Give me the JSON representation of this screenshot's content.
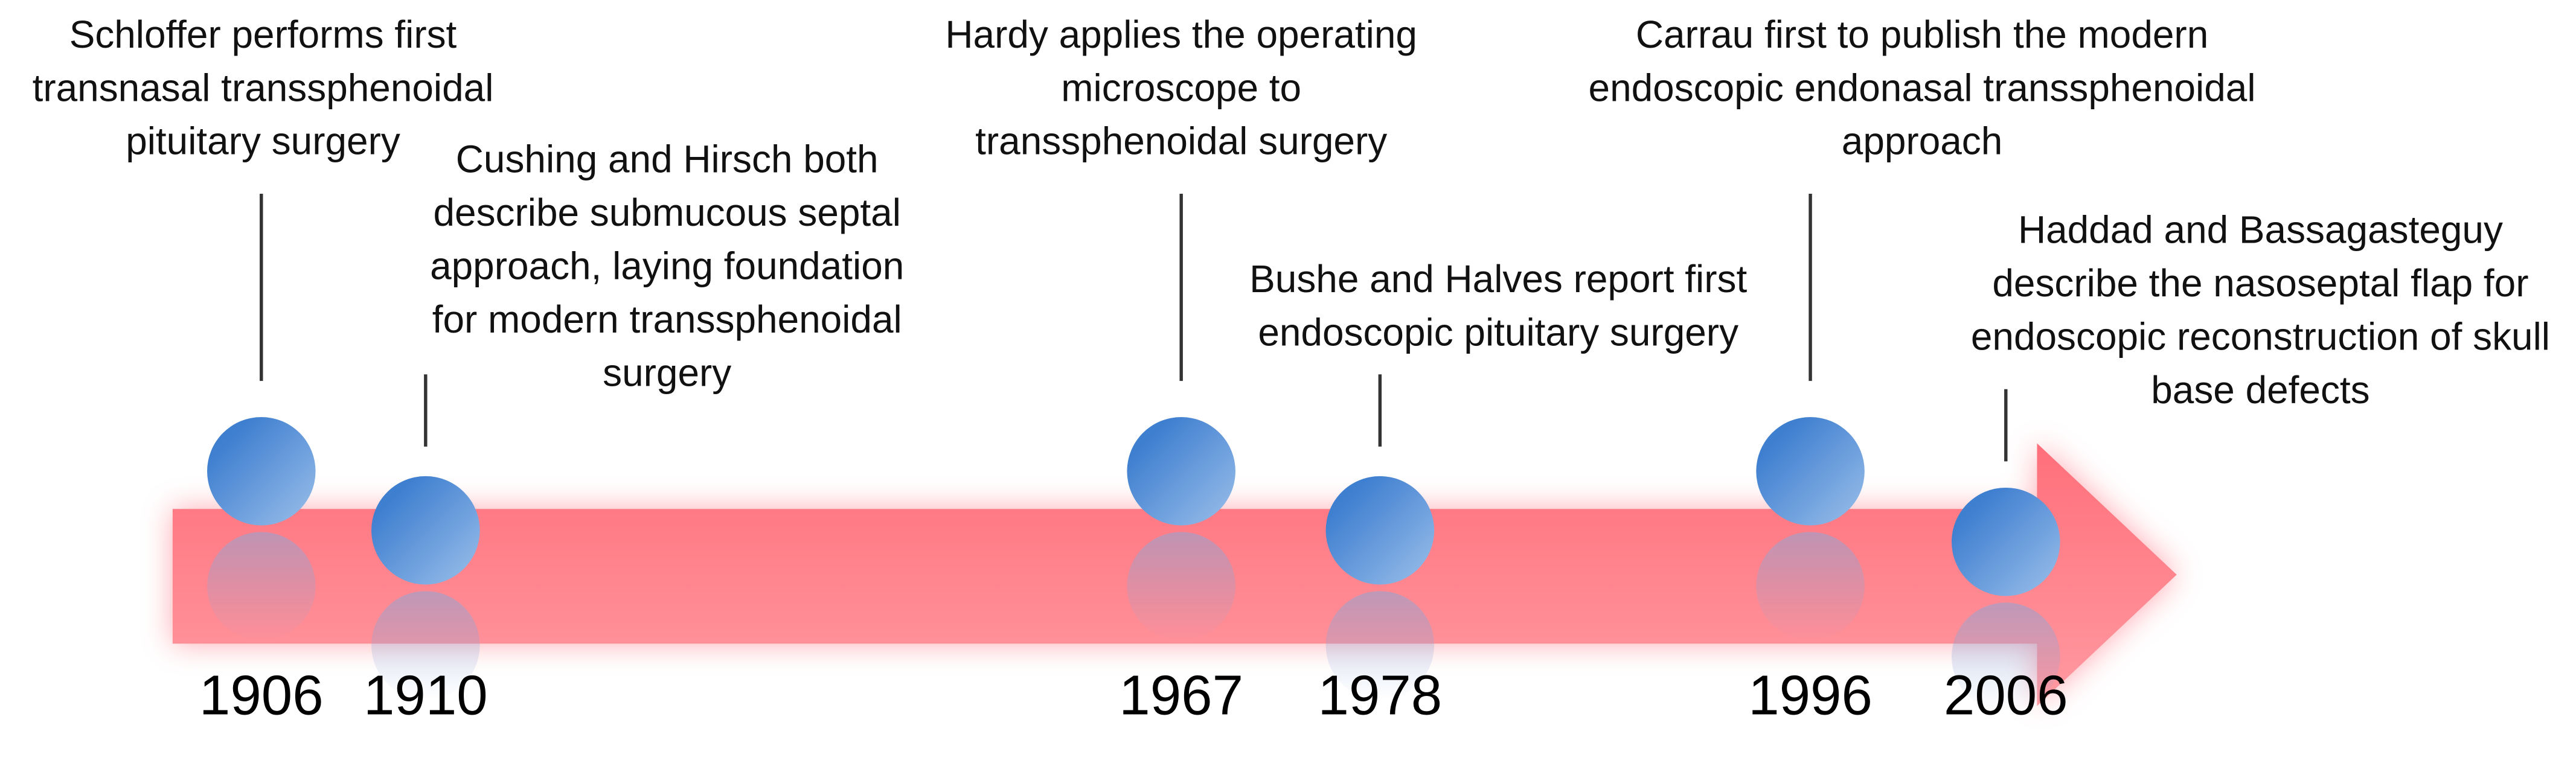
{
  "events": [
    {
      "year": "1906",
      "lines": [
        "Schloffer performs first",
        "transnasal transsphenoidal",
        "pituitary surgery"
      ]
    },
    {
      "year": "1910",
      "lines": [
        "Cushing and Hirsch both",
        "describe submucous septal",
        "approach, laying foundation",
        "for modern transsphenoidal",
        "surgery"
      ]
    },
    {
      "year": "1967",
      "lines": [
        "Hardy applies the operating",
        "microscope to",
        "transsphenoidal surgery"
      ]
    },
    {
      "year": "1978",
      "lines": [
        "Bushe and Halves report first",
        "endoscopic pituitary surgery"
      ]
    },
    {
      "year": "1996",
      "lines": [
        "Carrau first to publish the modern",
        "endoscopic endonasal transsphenoidal",
        "approach"
      ]
    },
    {
      "year": "2006",
      "lines": [
        "Haddad and Bassagasteguy",
        "describe the nasoseptal flap for",
        "endoscopic reconstruction of skull",
        "base defects"
      ]
    }
  ]
}
